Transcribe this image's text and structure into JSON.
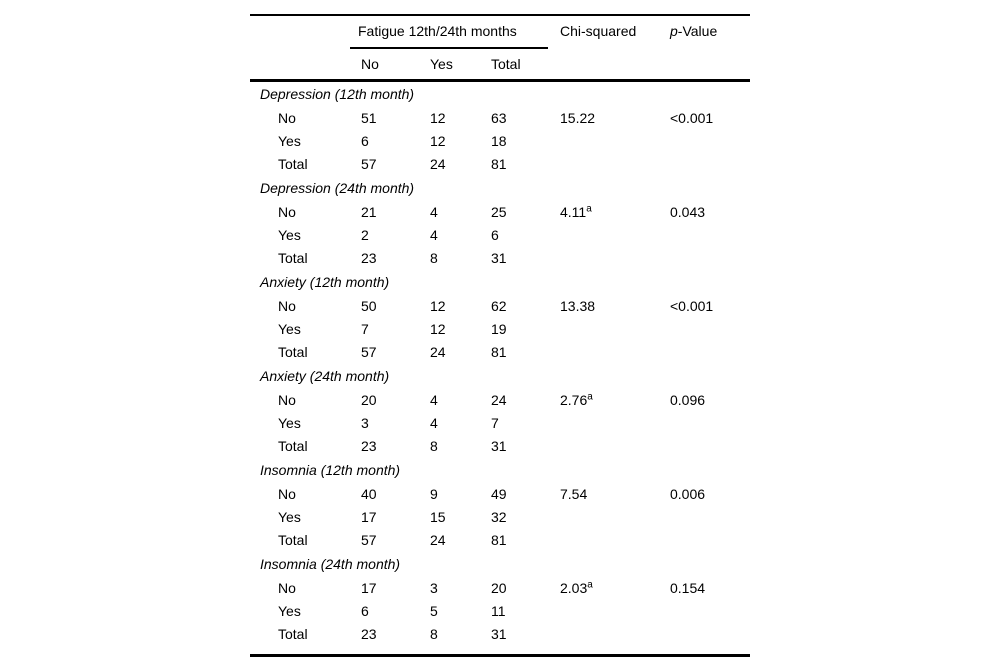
{
  "table": {
    "header": {
      "spanner": "Fatigue 12th/24th months",
      "col_no": "No",
      "col_yes": "Yes",
      "col_total": "Total",
      "chi_squared": "Chi-squared",
      "p_value_italic": "p",
      "p_value_rest": "-Value"
    },
    "colors": {
      "text": "#000000",
      "background": "#ffffff",
      "rule": "#000000"
    },
    "sections": [
      {
        "title": "Depression (12th month)",
        "rows": [
          {
            "label": "No",
            "no": "51",
            "yes": "12",
            "total": "63",
            "chi": "15.22",
            "chi_sup": "",
            "p": "<0.001"
          },
          {
            "label": "Yes",
            "no": "6",
            "yes": "12",
            "total": "18"
          },
          {
            "label": "Total",
            "no": "57",
            "yes": "24",
            "total": "81"
          }
        ]
      },
      {
        "title": "Depression (24th month)",
        "rows": [
          {
            "label": "No",
            "no": "21",
            "yes": "4",
            "total": "25",
            "chi": "4.11",
            "chi_sup": "a",
            "p": "0.043"
          },
          {
            "label": "Yes",
            "no": "2",
            "yes": "4",
            "total": "6"
          },
          {
            "label": "Total",
            "no": "23",
            "yes": "8",
            "total": "31"
          }
        ]
      },
      {
        "title": "Anxiety (12th month)",
        "rows": [
          {
            "label": "No",
            "no": "50",
            "yes": "12",
            "total": "62",
            "chi": "13.38",
            "chi_sup": "",
            "p": "<0.001"
          },
          {
            "label": "Yes",
            "no": "7",
            "yes": "12",
            "total": "19"
          },
          {
            "label": "Total",
            "no": "57",
            "yes": "24",
            "total": "81"
          }
        ]
      },
      {
        "title": "Anxiety (24th month)",
        "rows": [
          {
            "label": "No",
            "no": "20",
            "yes": "4",
            "total": "24",
            "chi": "2.76",
            "chi_sup": "a",
            "p": "0.096"
          },
          {
            "label": "Yes",
            "no": "3",
            "yes": "4",
            "total": "7"
          },
          {
            "label": "Total",
            "no": "23",
            "yes": "8",
            "total": "31"
          }
        ]
      },
      {
        "title": "Insomnia (12th month)",
        "rows": [
          {
            "label": "No",
            "no": "40",
            "yes": "9",
            "total": "49",
            "chi": "7.54",
            "chi_sup": "",
            "p": "0.006"
          },
          {
            "label": "Yes",
            "no": "17",
            "yes": "15",
            "total": "32"
          },
          {
            "label": "Total",
            "no": "57",
            "yes": "24",
            "total": "81"
          }
        ]
      },
      {
        "title": "Insomnia (24th month)",
        "rows": [
          {
            "label": "No",
            "no": "17",
            "yes": "3",
            "total": "20",
            "chi": "2.03",
            "chi_sup": "a",
            "p": "0.154"
          },
          {
            "label": "Yes",
            "no": "6",
            "yes": "5",
            "total": "11"
          },
          {
            "label": "Total",
            "no": "23",
            "yes": "8",
            "total": "31"
          }
        ]
      }
    ]
  }
}
